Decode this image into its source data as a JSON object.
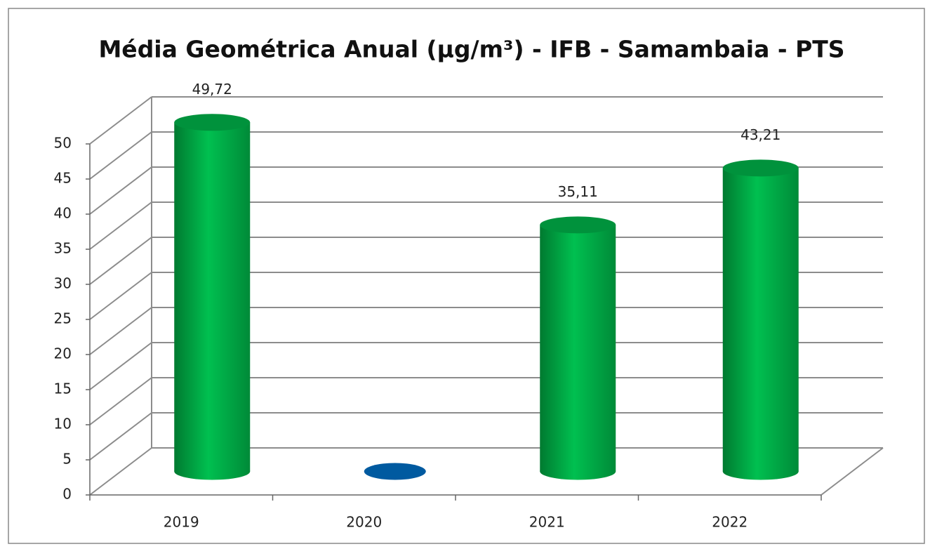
{
  "chart_data": {
    "type": "bar3d",
    "title": "Média Geométrica Anual (µg/m³) - IFB - Samambaia - PTS",
    "categories": [
      "2019",
      "2020",
      "2021",
      "2022"
    ],
    "values": [
      49.72,
      0,
      35.11,
      43.21
    ],
    "value_labels": [
      "49,72",
      null,
      "35,11",
      "43,21"
    ],
    "colors": [
      "#00b050",
      "#005aa0",
      "#00b050",
      "#00b050"
    ],
    "ylim": [
      0,
      50
    ],
    "yticks": [
      0,
      5,
      10,
      15,
      20,
      25,
      30,
      35,
      40,
      45,
      50
    ],
    "grid": true
  }
}
